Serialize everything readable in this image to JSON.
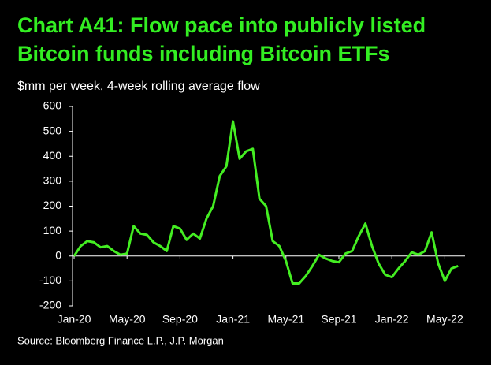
{
  "chart_data": {
    "type": "line",
    "title": [
      "Chart A41: Flow pace into publicly listed",
      "Bitcoin funds including Bitcoin ETFs"
    ],
    "subtitle": "$mm per week, 4-week rolling average flow",
    "source": "Source: Bloomberg Finance L.P., J.P. Morgan",
    "categories": [
      "Jan-20",
      null,
      null,
      null,
      null,
      null,
      null,
      null,
      "May-20",
      null,
      null,
      null,
      null,
      null,
      null,
      null,
      "Sep-20",
      null,
      null,
      null,
      null,
      null,
      null,
      null,
      "Jan-21",
      null,
      null,
      null,
      null,
      null,
      null,
      null,
      "May-21",
      null,
      null,
      null,
      null,
      null,
      null,
      null,
      "Sep-21",
      null,
      null,
      null,
      null,
      null,
      null,
      null,
      "Jan-22",
      null,
      null,
      null,
      null,
      null,
      null,
      null,
      "May-22",
      null,
      null
    ],
    "series": [
      {
        "color": "#44ee22",
        "values": [
          0,
          40,
          60,
          55,
          35,
          40,
          20,
          5,
          10,
          120,
          90,
          85,
          55,
          40,
          20,
          120,
          110,
          65,
          90,
          70,
          150,
          200,
          320,
          360,
          540,
          390,
          420,
          430,
          230,
          200,
          60,
          40,
          -20,
          -110,
          -110,
          -80,
          -40,
          5,
          -10,
          -20,
          -25,
          10,
          20,
          80,
          130,
          40,
          -30,
          -75,
          -85,
          -50,
          -20,
          15,
          5,
          20,
          95,
          -30,
          -100,
          -50,
          -40
        ]
      }
    ],
    "ylim": [
      -200,
      600
    ],
    "yticks": [
      -200,
      -100,
      0,
      100,
      200,
      300,
      400,
      500,
      600
    ]
  }
}
